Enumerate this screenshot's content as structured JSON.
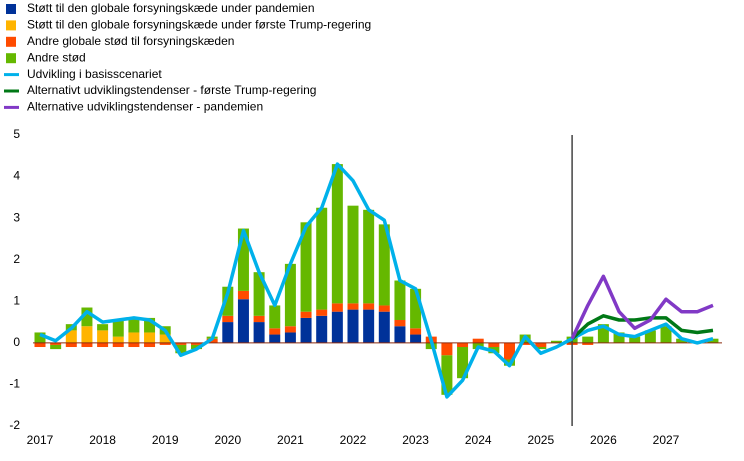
{
  "chart_data": {
    "type": "bar",
    "categories": [
      "2017",
      null,
      null,
      null,
      "2018",
      null,
      null,
      null,
      "2019",
      null,
      null,
      null,
      "2020",
      null,
      null,
      null,
      "2021",
      null,
      null,
      null,
      "2022",
      null,
      null,
      null,
      "2023",
      null,
      null,
      null,
      "2024",
      null,
      null,
      null,
      "2025",
      null,
      null,
      null,
      "2026",
      null,
      null,
      null,
      "2027",
      null,
      null,
      null
    ],
    "ylim": [
      -2,
      5
    ],
    "yticks": [
      -2,
      -1,
      0,
      1,
      2,
      3,
      4,
      5
    ],
    "grid": false,
    "legend": "top-left",
    "series": [
      {
        "name": "Støtt til den globale forsyningskæde under pandemien",
        "type": "bar",
        "color": "#003299",
        "values": [
          0,
          0,
          0,
          0,
          0,
          0,
          0,
          0,
          0,
          0,
          0,
          0,
          0.5,
          1.05,
          0.5,
          0.2,
          0.25,
          0.6,
          0.65,
          0.75,
          0.8,
          0.8,
          0.75,
          0.4,
          0.2,
          0,
          0,
          0,
          0,
          0,
          0,
          0,
          0,
          0,
          0,
          0,
          0,
          0,
          0,
          0,
          0,
          0,
          0,
          0
        ]
      },
      {
        "name": "Støtt til den globale forsyningskæde under første Trump-regering",
        "type": "bar",
        "color": "#ffb400",
        "values": [
          0,
          0,
          0.3,
          0.4,
          0.3,
          0.15,
          0.25,
          0.25,
          0.2,
          0,
          0,
          0,
          0,
          0,
          0,
          0,
          0,
          0,
          0,
          0,
          0,
          0,
          0,
          0,
          0,
          0,
          0,
          0,
          0,
          0,
          0,
          0,
          0,
          0,
          0,
          0,
          0,
          0,
          0,
          0,
          0,
          0,
          0,
          0
        ]
      },
      {
        "name": "Andre globale stød til forsyningskæden",
        "type": "bar",
        "color": "#ff4b00",
        "values": [
          -0.1,
          -0.05,
          -0.1,
          -0.1,
          -0.1,
          -0.1,
          -0.1,
          -0.1,
          -0.05,
          -0.05,
          -0.05,
          0.1,
          0.15,
          0.2,
          0.15,
          0.15,
          0.15,
          0.15,
          0.15,
          0.2,
          0.15,
          0.15,
          0.15,
          0.15,
          0.15,
          0.15,
          -0.3,
          -0.1,
          0.1,
          -0.1,
          -0.4,
          -0.05,
          -0.1,
          0,
          -0.05,
          -0.05,
          0,
          0,
          0,
          0,
          0,
          0,
          0,
          0
        ]
      },
      {
        "name": "Andre stød",
        "type": "bar",
        "color": "#65b800",
        "values": [
          0.25,
          -0.1,
          0.15,
          0.45,
          0.15,
          0.4,
          0.35,
          0.35,
          0.2,
          -0.2,
          -0.1,
          0.05,
          0.7,
          1.5,
          1.05,
          0.55,
          1.5,
          2.15,
          2.45,
          3.35,
          2.35,
          2.25,
          1.95,
          0.95,
          0.95,
          -0.15,
          -0.95,
          -0.75,
          -0.15,
          -0.15,
          -0.15,
          0.2,
          -0.05,
          0.05,
          0.15,
          0.15,
          0.45,
          0.25,
          0.15,
          0.3,
          0.4,
          0.1,
          0,
          0.1
        ]
      },
      {
        "name": "Udvikling i basisscenariet",
        "type": "line",
        "color": "#00b1ea",
        "values": [
          0.2,
          0.05,
          0.35,
          0.75,
          0.5,
          0.55,
          0.6,
          0.55,
          0.3,
          -0.3,
          -0.15,
          0.1,
          1.2,
          2.7,
          1.7,
          0.9,
          1.9,
          2.8,
          3.25,
          4.3,
          3.9,
          3.2,
          2.95,
          1.5,
          1.3,
          0.05,
          -1.3,
          -0.9,
          -0.1,
          -0.2,
          -0.55,
          0.15,
          -0.25,
          -0.1,
          0.1,
          0.3,
          0.4,
          0.2,
          0.15,
          0.3,
          0.45,
          0.1,
          0,
          0.1
        ]
      },
      {
        "name": "Alternativt udviklingstendenser - første Trump-regering",
        "type": "line",
        "color": "#007816",
        "values": [
          null,
          null,
          null,
          null,
          null,
          null,
          null,
          null,
          null,
          null,
          null,
          null,
          null,
          null,
          null,
          null,
          null,
          null,
          null,
          null,
          null,
          null,
          null,
          null,
          null,
          null,
          null,
          null,
          null,
          null,
          null,
          null,
          null,
          null,
          0.1,
          0.45,
          0.65,
          0.55,
          0.55,
          0.6,
          0.6,
          0.3,
          0.25,
          0.3
        ]
      },
      {
        "name": "Alternative udviklingstendenser - pandemien",
        "type": "line",
        "color": "#8139c6",
        "values": [
          null,
          null,
          null,
          null,
          null,
          null,
          null,
          null,
          null,
          null,
          null,
          null,
          null,
          null,
          null,
          null,
          null,
          null,
          null,
          null,
          null,
          null,
          null,
          null,
          null,
          null,
          null,
          null,
          null,
          null,
          null,
          null,
          null,
          null,
          0.1,
          0.9,
          1.6,
          0.75,
          0.35,
          0.55,
          1.05,
          0.75,
          0.75,
          0.9
        ]
      }
    ]
  }
}
